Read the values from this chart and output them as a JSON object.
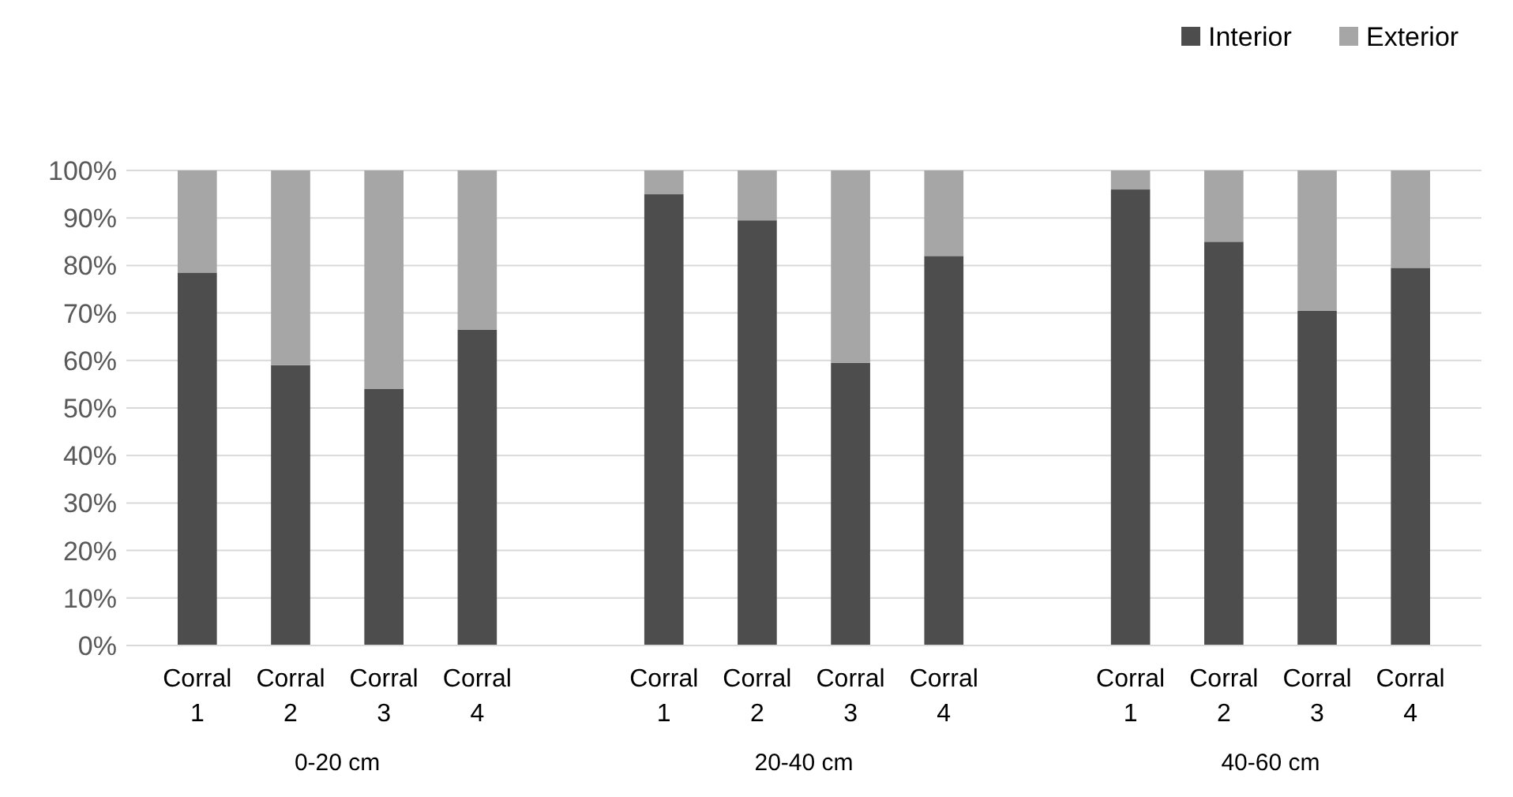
{
  "chart_data": {
    "type": "bar",
    "stacked": true,
    "categories": [
      "Corral 1",
      "Corral 2",
      "Corral 3",
      "Corral 4",
      null,
      "Corral 1",
      "Corral 2",
      "Corral 3",
      "Corral 4",
      null,
      "Corral 1",
      "Corral 2",
      "Corral 3",
      "Corral 4"
    ],
    "series": [
      {
        "name": "Interior",
        "color": "#4d4d4d",
        "values": [
          78.5,
          59,
          54,
          66.5,
          null,
          95,
          89.5,
          59.5,
          82,
          null,
          96,
          85,
          70.5,
          79.5
        ]
      },
      {
        "name": "Exterior",
        "color": "#a6a6a6",
        "values": [
          21.5,
          41,
          46,
          33.5,
          null,
          5,
          10.5,
          40.5,
          18,
          null,
          4,
          15,
          29.5,
          20.5
        ]
      }
    ],
    "ylim": [
      0,
      100
    ],
    "yticks": [
      {
        "value": 0,
        "label": "0%"
      },
      {
        "value": 10,
        "label": "10%"
      },
      {
        "value": 20,
        "label": "20%"
      },
      {
        "value": 30,
        "label": "30%"
      },
      {
        "value": 40,
        "label": "40%"
      },
      {
        "value": 50,
        "label": "50%"
      },
      {
        "value": 60,
        "label": "60%"
      },
      {
        "value": 70,
        "label": "70%"
      },
      {
        "value": 80,
        "label": "80%"
      },
      {
        "value": 90,
        "label": "90%"
      },
      {
        "value": 100,
        "label": "100%"
      }
    ],
    "grid": "y",
    "legend": "top right",
    "annotations": [
      "0-20 cm",
      "20-40 cm",
      "40-60 cm"
    ]
  }
}
